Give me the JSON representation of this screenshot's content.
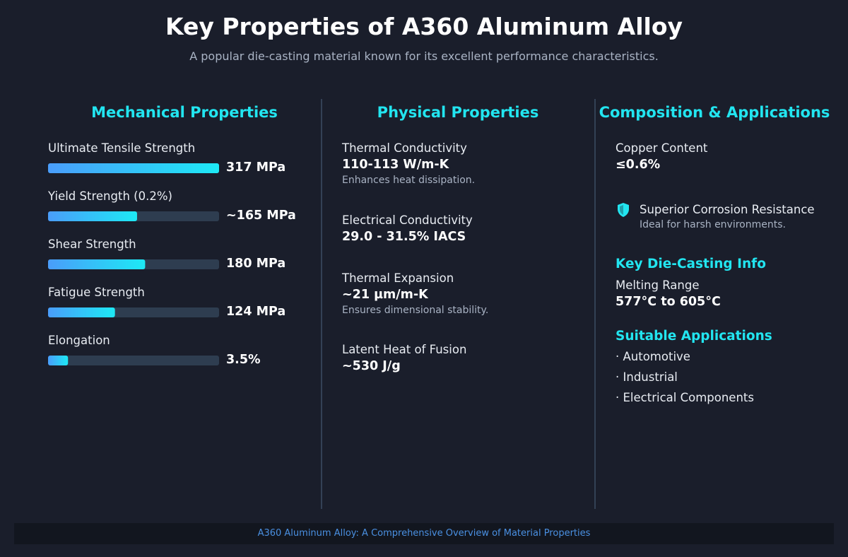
{
  "header": {
    "title": "Key Properties of A360 Aluminum Alloy",
    "subtitle": "A popular die-casting material known for its excellent performance characteristics."
  },
  "mechanical": {
    "heading": "Mechanical Properties",
    "items": [
      {
        "label": "Ultimate Tensile Strength",
        "value": 317,
        "value_label": "317 MPa",
        "xlim": [
          0,
          317
        ]
      },
      {
        "label": "Yield Strength (0.2%)",
        "value": 165,
        "value_label": "~165 MPa",
        "xlim": [
          0,
          317
        ]
      },
      {
        "label": "Shear Strength",
        "value": 180,
        "value_label": "180 MPa",
        "xlim": [
          0,
          317
        ]
      },
      {
        "label": "Fatigue Strength",
        "value": 124,
        "value_label": "124 MPa",
        "xlim": [
          0,
          317
        ]
      },
      {
        "label": "Elongation",
        "value": 3.5,
        "value_label": "3.5%",
        "xlim": [
          0,
          30
        ]
      }
    ]
  },
  "physical": {
    "heading": "Physical Properties",
    "items": [
      {
        "label": "Thermal Conductivity",
        "value": "110-113 W/m-K",
        "note": "Enhances heat dissipation."
      },
      {
        "label": "Electrical Conductivity",
        "value": "29.0 - 31.5% IACS"
      },
      {
        "label": "Thermal Expansion",
        "value": "~21 µm/m-K",
        "note": "Ensures dimensional stability."
      },
      {
        "label": "Latent Heat of Fusion",
        "value": "~530 J/g"
      }
    ]
  },
  "composition": {
    "heading": "Composition & Applications",
    "copper": {
      "label": "Copper Content",
      "value": "≤0.6%"
    },
    "corrosion": {
      "label": "Superior Corrosion Resistance",
      "note": "Ideal for harsh environments."
    },
    "die_casting": {
      "heading": "Key Die-Casting Info",
      "label": "Melting Range",
      "value": "577°C to 605°C"
    },
    "applications": {
      "heading": "Suitable Applications",
      "items": [
        "Automotive",
        "Industrial",
        "Electrical Components"
      ]
    }
  },
  "footer": {
    "text": "A360 Aluminum Alloy: A Comprehensive Overview of Material Properties"
  }
}
